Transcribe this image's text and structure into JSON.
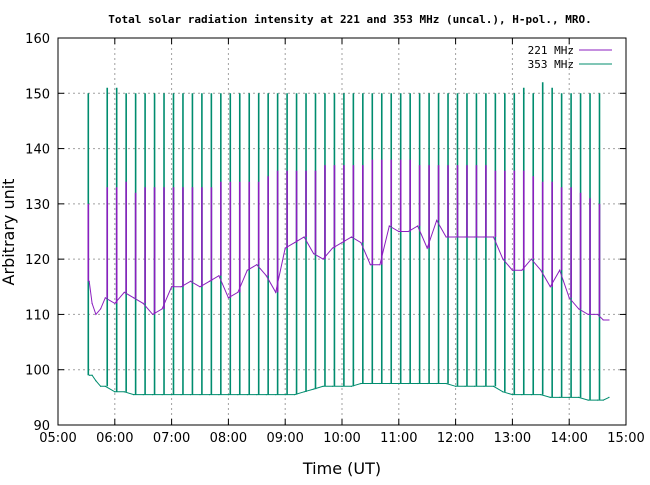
{
  "chart_data": {
    "type": "line",
    "title": "Total solar radiation intensity at 221 and 353 MHz (uncal.), H-pol., MRO.",
    "xlabel": "Time (UT)",
    "ylabel": "Arbitrary unit",
    "xlim": [
      "05:00",
      "15:00"
    ],
    "ylim": [
      90,
      160
    ],
    "x_ticks": [
      "05:00",
      "06:00",
      "07:00",
      "08:00",
      "09:00",
      "10:00",
      "11:00",
      "12:00",
      "13:00",
      "14:00",
      "15:00"
    ],
    "y_ticks": [
      90,
      100,
      110,
      120,
      130,
      140,
      150,
      160
    ],
    "grid": true,
    "legend_position": "top-right",
    "series": [
      {
        "name": "221 MHz",
        "color": "#8b1fbf",
        "x": [
          "05:33",
          "05:36",
          "05:40",
          "05:45",
          "05:50",
          "06:00",
          "06:10",
          "06:20",
          "06:30",
          "06:40",
          "06:50",
          "07:00",
          "07:10",
          "07:20",
          "07:30",
          "07:40",
          "07:50",
          "08:00",
          "08:10",
          "08:20",
          "08:30",
          "08:40",
          "08:50",
          "09:00",
          "09:10",
          "09:20",
          "09:30",
          "09:40",
          "09:50",
          "10:00",
          "10:10",
          "10:20",
          "10:30",
          "10:40",
          "10:50",
          "11:00",
          "11:10",
          "11:20",
          "11:30",
          "11:40",
          "11:50",
          "12:00",
          "12:10",
          "12:20",
          "12:30",
          "12:40",
          "12:50",
          "13:00",
          "13:10",
          "13:20",
          "13:30",
          "13:40",
          "13:50",
          "14:00",
          "14:10",
          "14:20",
          "14:30",
          "14:36",
          "14:42"
        ],
        "y": [
          116,
          112,
          110,
          111,
          113,
          112,
          114,
          113,
          112,
          110,
          111,
          115,
          115,
          116,
          115,
          116,
          117,
          113,
          114,
          118,
          119,
          117,
          114,
          122,
          123,
          124,
          121,
          120,
          122,
          123,
          124,
          123,
          119,
          119,
          126,
          125,
          125,
          126,
          122,
          127,
          124,
          124,
          124,
          124,
          124,
          124,
          120,
          118,
          118,
          120,
          118,
          115,
          118,
          113,
          111,
          110,
          110,
          109,
          109
        ]
      },
      {
        "name": "353 MHz",
        "color": "#008c6e",
        "x": [
          "05:33",
          "05:36",
          "05:40",
          "05:45",
          "05:50",
          "06:00",
          "06:10",
          "06:20",
          "06:30",
          "06:40",
          "06:50",
          "07:00",
          "07:10",
          "07:20",
          "07:30",
          "07:40",
          "07:50",
          "08:00",
          "08:10",
          "08:20",
          "08:30",
          "08:40",
          "08:50",
          "09:00",
          "09:10",
          "09:20",
          "09:30",
          "09:40",
          "09:50",
          "10:00",
          "10:10",
          "10:20",
          "10:30",
          "10:40",
          "10:50",
          "11:00",
          "11:10",
          "11:20",
          "11:30",
          "11:40",
          "11:50",
          "12:00",
          "12:10",
          "12:20",
          "12:30",
          "12:40",
          "12:50",
          "13:00",
          "13:10",
          "13:20",
          "13:30",
          "13:40",
          "13:50",
          "14:00",
          "14:10",
          "14:20",
          "14:30",
          "14:36",
          "14:42"
        ],
        "y": [
          99,
          99,
          98,
          97,
          97,
          96,
          96,
          95.5,
          95.5,
          95.5,
          95.5,
          95.5,
          95.5,
          95.5,
          95.5,
          95.5,
          95.5,
          95.5,
          95.5,
          95.5,
          95.5,
          95.5,
          95.5,
          95.5,
          95.5,
          96,
          96.5,
          97,
          97,
          97,
          97,
          97.5,
          97.5,
          97.5,
          97.5,
          97.5,
          97.5,
          97.5,
          97.5,
          97.5,
          97.5,
          97,
          97,
          97,
          97,
          97,
          96,
          95.5,
          95.5,
          95.5,
          95.5,
          95,
          95,
          95,
          95,
          94.5,
          94.5,
          94.5,
          95
        ]
      }
    ],
    "calibration_spikes_353": {
      "times": [
        "05:32",
        "05:52",
        "06:02",
        "06:12",
        "06:22",
        "06:32",
        "06:42",
        "06:52",
        "07:02",
        "07:12",
        "07:22",
        "07:32",
        "07:42",
        "07:52",
        "08:02",
        "08:12",
        "08:22",
        "08:32",
        "08:42",
        "08:52",
        "09:02",
        "09:12",
        "09:22",
        "09:32",
        "09:42",
        "09:52",
        "10:02",
        "10:12",
        "10:22",
        "10:32",
        "10:42",
        "10:52",
        "11:02",
        "11:12",
        "11:22",
        "11:32",
        "11:42",
        "11:52",
        "12:02",
        "12:12",
        "12:22",
        "12:32",
        "12:42",
        "12:52",
        "13:02",
        "13:12",
        "13:22",
        "13:32",
        "13:42",
        "13:52",
        "14:02",
        "14:12",
        "14:22",
        "14:32"
      ],
      "peak": [
        150,
        151,
        151,
        150,
        150,
        150,
        150,
        150,
        150,
        150,
        150,
        150,
        150,
        150,
        150,
        150,
        150,
        150,
        150,
        150,
        150,
        150,
        150,
        150,
        150,
        150,
        150,
        150,
        150,
        150,
        150,
        150,
        150,
        150,
        150,
        150,
        150,
        150,
        150,
        150,
        150,
        150,
        150,
        150,
        150,
        151,
        150,
        152,
        151,
        150,
        150,
        150,
        150,
        150
      ]
    },
    "calibration_spikes_221": {
      "times": [
        "05:32",
        "05:52",
        "06:02",
        "06:12",
        "06:22",
        "06:32",
        "06:42",
        "06:52",
        "07:02",
        "07:12",
        "07:22",
        "07:32",
        "07:42",
        "07:52",
        "08:02",
        "08:12",
        "08:22",
        "08:32",
        "08:42",
        "08:52",
        "09:02",
        "09:12",
        "09:22",
        "09:32",
        "09:42",
        "09:52",
        "10:02",
        "10:12",
        "10:22",
        "10:32",
        "10:42",
        "10:52",
        "11:02",
        "11:12",
        "11:22",
        "11:32",
        "11:42",
        "11:52",
        "12:02",
        "12:12",
        "12:22",
        "12:32",
        "12:42",
        "12:52",
        "13:02",
        "13:12",
        "13:22",
        "13:32",
        "13:42",
        "13:52",
        "14:02",
        "14:12",
        "14:22",
        "14:32"
      ],
      "peak": [
        130,
        133,
        133,
        134,
        132,
        133,
        133,
        133,
        133,
        133,
        133,
        133,
        133,
        134,
        134,
        134,
        134,
        134,
        135,
        136,
        136,
        136,
        136,
        136,
        137,
        137,
        137,
        137,
        137,
        138,
        138,
        138,
        138,
        138,
        137,
        137,
        137,
        137,
        137,
        137,
        137,
        137,
        136,
        136,
        136,
        136,
        135,
        134,
        134,
        133,
        133,
        132,
        131,
        130
      ]
    }
  }
}
